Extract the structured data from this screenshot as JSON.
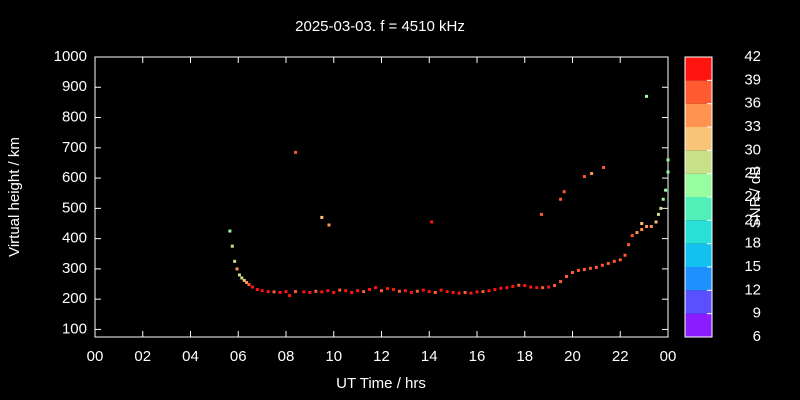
{
  "chart_data": {
    "type": "scatter",
    "title": "2025-03-03. f = 4510 kHz",
    "x_label": "UT Time / hrs",
    "y_label": "Virtual height / km",
    "xlim": [
      0,
      24
    ],
    "xticks": [
      {
        "value": 0,
        "label": "00"
      },
      {
        "value": 2,
        "label": "02"
      },
      {
        "value": 4,
        "label": "04"
      },
      {
        "value": 6,
        "label": "06"
      },
      {
        "value": 8,
        "label": "08"
      },
      10,
      12,
      14,
      16,
      18,
      20,
      22,
      {
        "value": 24,
        "label": "00"
      }
    ],
    "ylim": [
      75,
      1000
    ],
    "yticks": [
      100,
      200,
      300,
      400,
      500,
      600,
      700,
      800,
      900,
      1000
    ],
    "colorbar": {
      "label": "SNR / dB",
      "lim": [
        6,
        42
      ],
      "ticks": [
        6,
        9,
        12,
        15,
        18,
        21,
        24,
        27,
        30,
        33,
        36,
        39,
        42
      ],
      "colors": [
        "#8a1cff",
        "#5a50ff",
        "#1e90ff",
        "#14c0f0",
        "#28e0d8",
        "#50f0b8",
        "#98fca0",
        "#c8e088",
        "#f8c478",
        "#ff9450",
        "#ff5a30",
        "#ff1410"
      ]
    },
    "series": [
      {
        "x": [
          5.65,
          5.75,
          5.85,
          5.95,
          6.05,
          6.15,
          6.25,
          6.35,
          6.45,
          6.6,
          6.8,
          7.0,
          7.25,
          7.5,
          7.75,
          8.0,
          8.15,
          8.4,
          8.75,
          9.0,
          9.25,
          9.5,
          9.75,
          10.0,
          10.25,
          10.5,
          10.75,
          11.0,
          11.25,
          11.5,
          11.75,
          12.0,
          12.25,
          12.5,
          12.75,
          13.0,
          13.25,
          13.5,
          13.75,
          14.0,
          14.25,
          14.5,
          14.75,
          15.0,
          15.25,
          15.5,
          15.75,
          16.0,
          16.25,
          16.5,
          16.75,
          17.0,
          17.25,
          17.5,
          17.75,
          18.0,
          18.25,
          18.5,
          18.75,
          19.0,
          19.25,
          19.5,
          19.75,
          20.0,
          20.25,
          20.5,
          20.75,
          21.0,
          21.25,
          21.5,
          21.75,
          22.0,
          22.2,
          22.35,
          22.5,
          22.7,
          22.9,
          23.1,
          23.3,
          23.5,
          23.6,
          23.7,
          23.8,
          23.9,
          24.0,
          24.0,
          8.4,
          9.5,
          9.8,
          14.1,
          18.7,
          19.5,
          19.65,
          20.5,
          20.8,
          21.3,
          23.1,
          22.9
        ],
        "y": [
          425,
          375,
          325,
          300,
          280,
          270,
          262,
          255,
          248,
          240,
          232,
          228,
          225,
          224,
          222,
          225,
          212,
          225,
          224,
          222,
          226,
          224,
          228,
          222,
          230,
          228,
          222,
          228,
          225,
          232,
          238,
          228,
          235,
          232,
          226,
          228,
          222,
          226,
          230,
          225,
          222,
          230,
          225,
          222,
          220,
          222,
          220,
          224,
          225,
          228,
          232,
          236,
          238,
          242,
          246,
          245,
          240,
          238,
          238,
          240,
          245,
          258,
          275,
          288,
          295,
          298,
          302,
          305,
          312,
          318,
          325,
          330,
          345,
          380,
          410,
          420,
          430,
          440,
          440,
          455,
          480,
          500,
          530,
          560,
          620,
          660,
          685,
          470,
          445,
          455,
          480,
          530,
          555,
          605,
          615,
          635,
          870,
          450
        ],
        "snr": [
          24,
          27,
          27,
          33,
          27,
          27,
          30,
          33,
          36,
          39,
          39,
          40,
          40,
          38,
          40,
          40,
          40,
          38,
          40,
          40,
          38,
          40,
          40,
          40,
          38,
          40,
          40,
          40,
          38,
          40,
          40,
          38,
          40,
          40,
          38,
          40,
          40,
          38,
          40,
          40,
          38,
          40,
          40,
          40,
          40,
          38,
          40,
          40,
          38,
          40,
          40,
          40,
          40,
          40,
          38,
          40,
          40,
          40,
          38,
          40,
          36,
          36,
          36,
          36,
          36,
          36,
          36,
          36,
          38,
          36,
          36,
          36,
          36,
          36,
          36,
          33,
          33,
          33,
          33,
          30,
          27,
          27,
          24,
          24,
          24,
          24,
          36,
          30,
          33,
          42,
          36,
          36,
          36,
          36,
          33,
          36,
          24,
          30
        ]
      }
    ]
  }
}
